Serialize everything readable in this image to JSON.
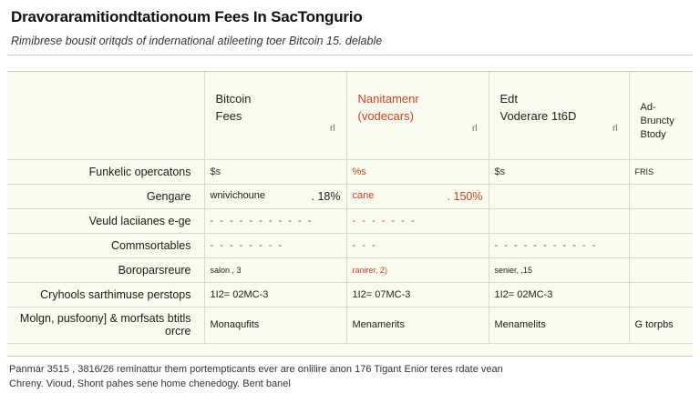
{
  "title": "Dravoraramitiondtationoum Fees In SacTongurio",
  "subtitle": "Rimibrese bousit oritqds of indernational atileeting toer Bitcoin 15. delable",
  "columns": [
    {
      "line1": "Bitcoin",
      "line2": "Fees",
      "mark": "rl"
    },
    {
      "line1": "Nanitamenr",
      "line2": "(vodecars)",
      "mark": "rl"
    },
    {
      "line1": "Edt",
      "line2": "Voderare 1t6D",
      "mark": "rl"
    },
    {
      "line1": "Ad-",
      "line2": "Bruncty",
      "line3": "Btody"
    }
  ],
  "rows": [
    {
      "label": "Funkelic opercatons",
      "c1": "$s",
      "c2": "%s",
      "c3": "$s",
      "c4": "FRIS"
    },
    {
      "label": "Gengare",
      "c1": "wnivichoune",
      "c1_pct": ". 18%",
      "c2": "cane",
      "c2_pct": ". 150%",
      "c3": "",
      "c4": ""
    },
    {
      "label": "Veuld laciianes e-ge",
      "c1": "- - - - - - - - - - -",
      "c2": "- - - - - - -",
      "c3": "",
      "c4": ""
    },
    {
      "label": "Commsortables",
      "c1": "- - - - - - - -",
      "c2": "- - -",
      "c3": "- - - - - - - - - - -",
      "c4": ""
    },
    {
      "label": "Boroparsreure",
      "c1": "salon ,  3",
      "c2": "ranirer, 2)",
      "c3": "senier,  ,15",
      "c4": ""
    },
    {
      "label": "Cryhools sarthimuse perstops",
      "c1": "1I2= 02MC-3",
      "c2": "1I2= 07MC-3",
      "c3": "1I2= 02MC-3",
      "c4": ""
    },
    {
      "label": "Molgn, pusfoony] & morfsats btitls orcre",
      "c1": "Monaqufits",
      "c2": "Menamerits",
      "c3": "Menamelits",
      "c4": "G torpbs"
    }
  ],
  "footnote": {
    "line1": "Panmar 3515 , 3816/26 reminattur them portempticants ever are onlilire anon 176 Tigant Enior teres rdate vean",
    "line2": "Chreny. Vioud, Shont pahes sene home chenedogy. Bent banel"
  }
}
